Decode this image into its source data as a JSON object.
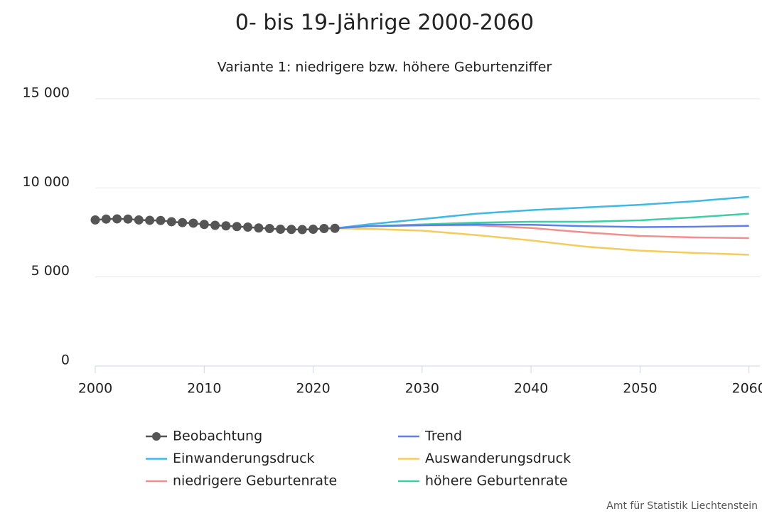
{
  "chart_data": {
    "type": "line",
    "title": "0- bis 19-Jährige 2000-2060",
    "subtitle": "Variante 1: niedrigere bzw. höhere Geburtenziffer",
    "credit": "Amt für Statistik Liechtenstein",
    "xlim": [
      2000,
      2061
    ],
    "xticks": [
      2000,
      2010,
      2020,
      2030,
      2040,
      2050,
      2060
    ],
    "ylim": [
      0,
      15000
    ],
    "yticks": [
      0,
      {
        "value": 5000,
        "label": "5 000"
      },
      {
        "value": 10000,
        "label": "10 000"
      },
      {
        "value": 15000,
        "label": "15 000"
      }
    ],
    "grid": true,
    "series": [
      {
        "name": "Beobachtung",
        "color": "#555555",
        "markers": true,
        "x": [
          2000,
          2001,
          2002,
          2003,
          2004,
          2005,
          2006,
          2007,
          2008,
          2009,
          2010,
          2011,
          2012,
          2013,
          2014,
          2015,
          2016,
          2017,
          2018,
          2019,
          2020,
          2021,
          2022
        ],
        "values": [
          8200,
          8250,
          8260,
          8250,
          8200,
          8180,
          8170,
          8100,
          8050,
          8020,
          7950,
          7900,
          7870,
          7830,
          7800,
          7750,
          7720,
          7680,
          7670,
          7660,
          7680,
          7720,
          7730
        ]
      },
      {
        "name": "Trend",
        "color": "#5b82ec",
        "x": [
          2022,
          2025,
          2030,
          2035,
          2040,
          2045,
          2050,
          2055,
          2060
        ],
        "values": [
          7730,
          7850,
          7900,
          7950,
          7930,
          7850,
          7800,
          7820,
          7870
        ]
      },
      {
        "name": "Einwanderungsdruck",
        "color": "#3cb9e8",
        "x": [
          2022,
          2025,
          2030,
          2035,
          2040,
          2045,
          2050,
          2055,
          2060
        ],
        "values": [
          7730,
          7950,
          8250,
          8550,
          8750,
          8900,
          9050,
          9250,
          9500
        ]
      },
      {
        "name": "Auswanderungsdruck",
        "color": "#f6cb5c",
        "x": [
          2022,
          2025,
          2030,
          2035,
          2040,
          2045,
          2050,
          2055,
          2060
        ],
        "values": [
          7730,
          7700,
          7600,
          7350,
          7050,
          6700,
          6480,
          6350,
          6250
        ]
      },
      {
        "name": "niedrigere Geburtenrate",
        "color": "#f48e8c",
        "x": [
          2022,
          2025,
          2030,
          2035,
          2040,
          2045,
          2050,
          2055,
          2060
        ],
        "values": [
          7730,
          7850,
          7900,
          7900,
          7750,
          7500,
          7300,
          7220,
          7180
        ]
      },
      {
        "name": "höhere Geburtenrate",
        "color": "#3dcfa2",
        "x": [
          2022,
          2025,
          2030,
          2035,
          2040,
          2045,
          2050,
          2055,
          2060
        ],
        "values": [
          7730,
          7850,
          7950,
          8050,
          8100,
          8100,
          8180,
          8350,
          8550
        ]
      }
    ]
  }
}
